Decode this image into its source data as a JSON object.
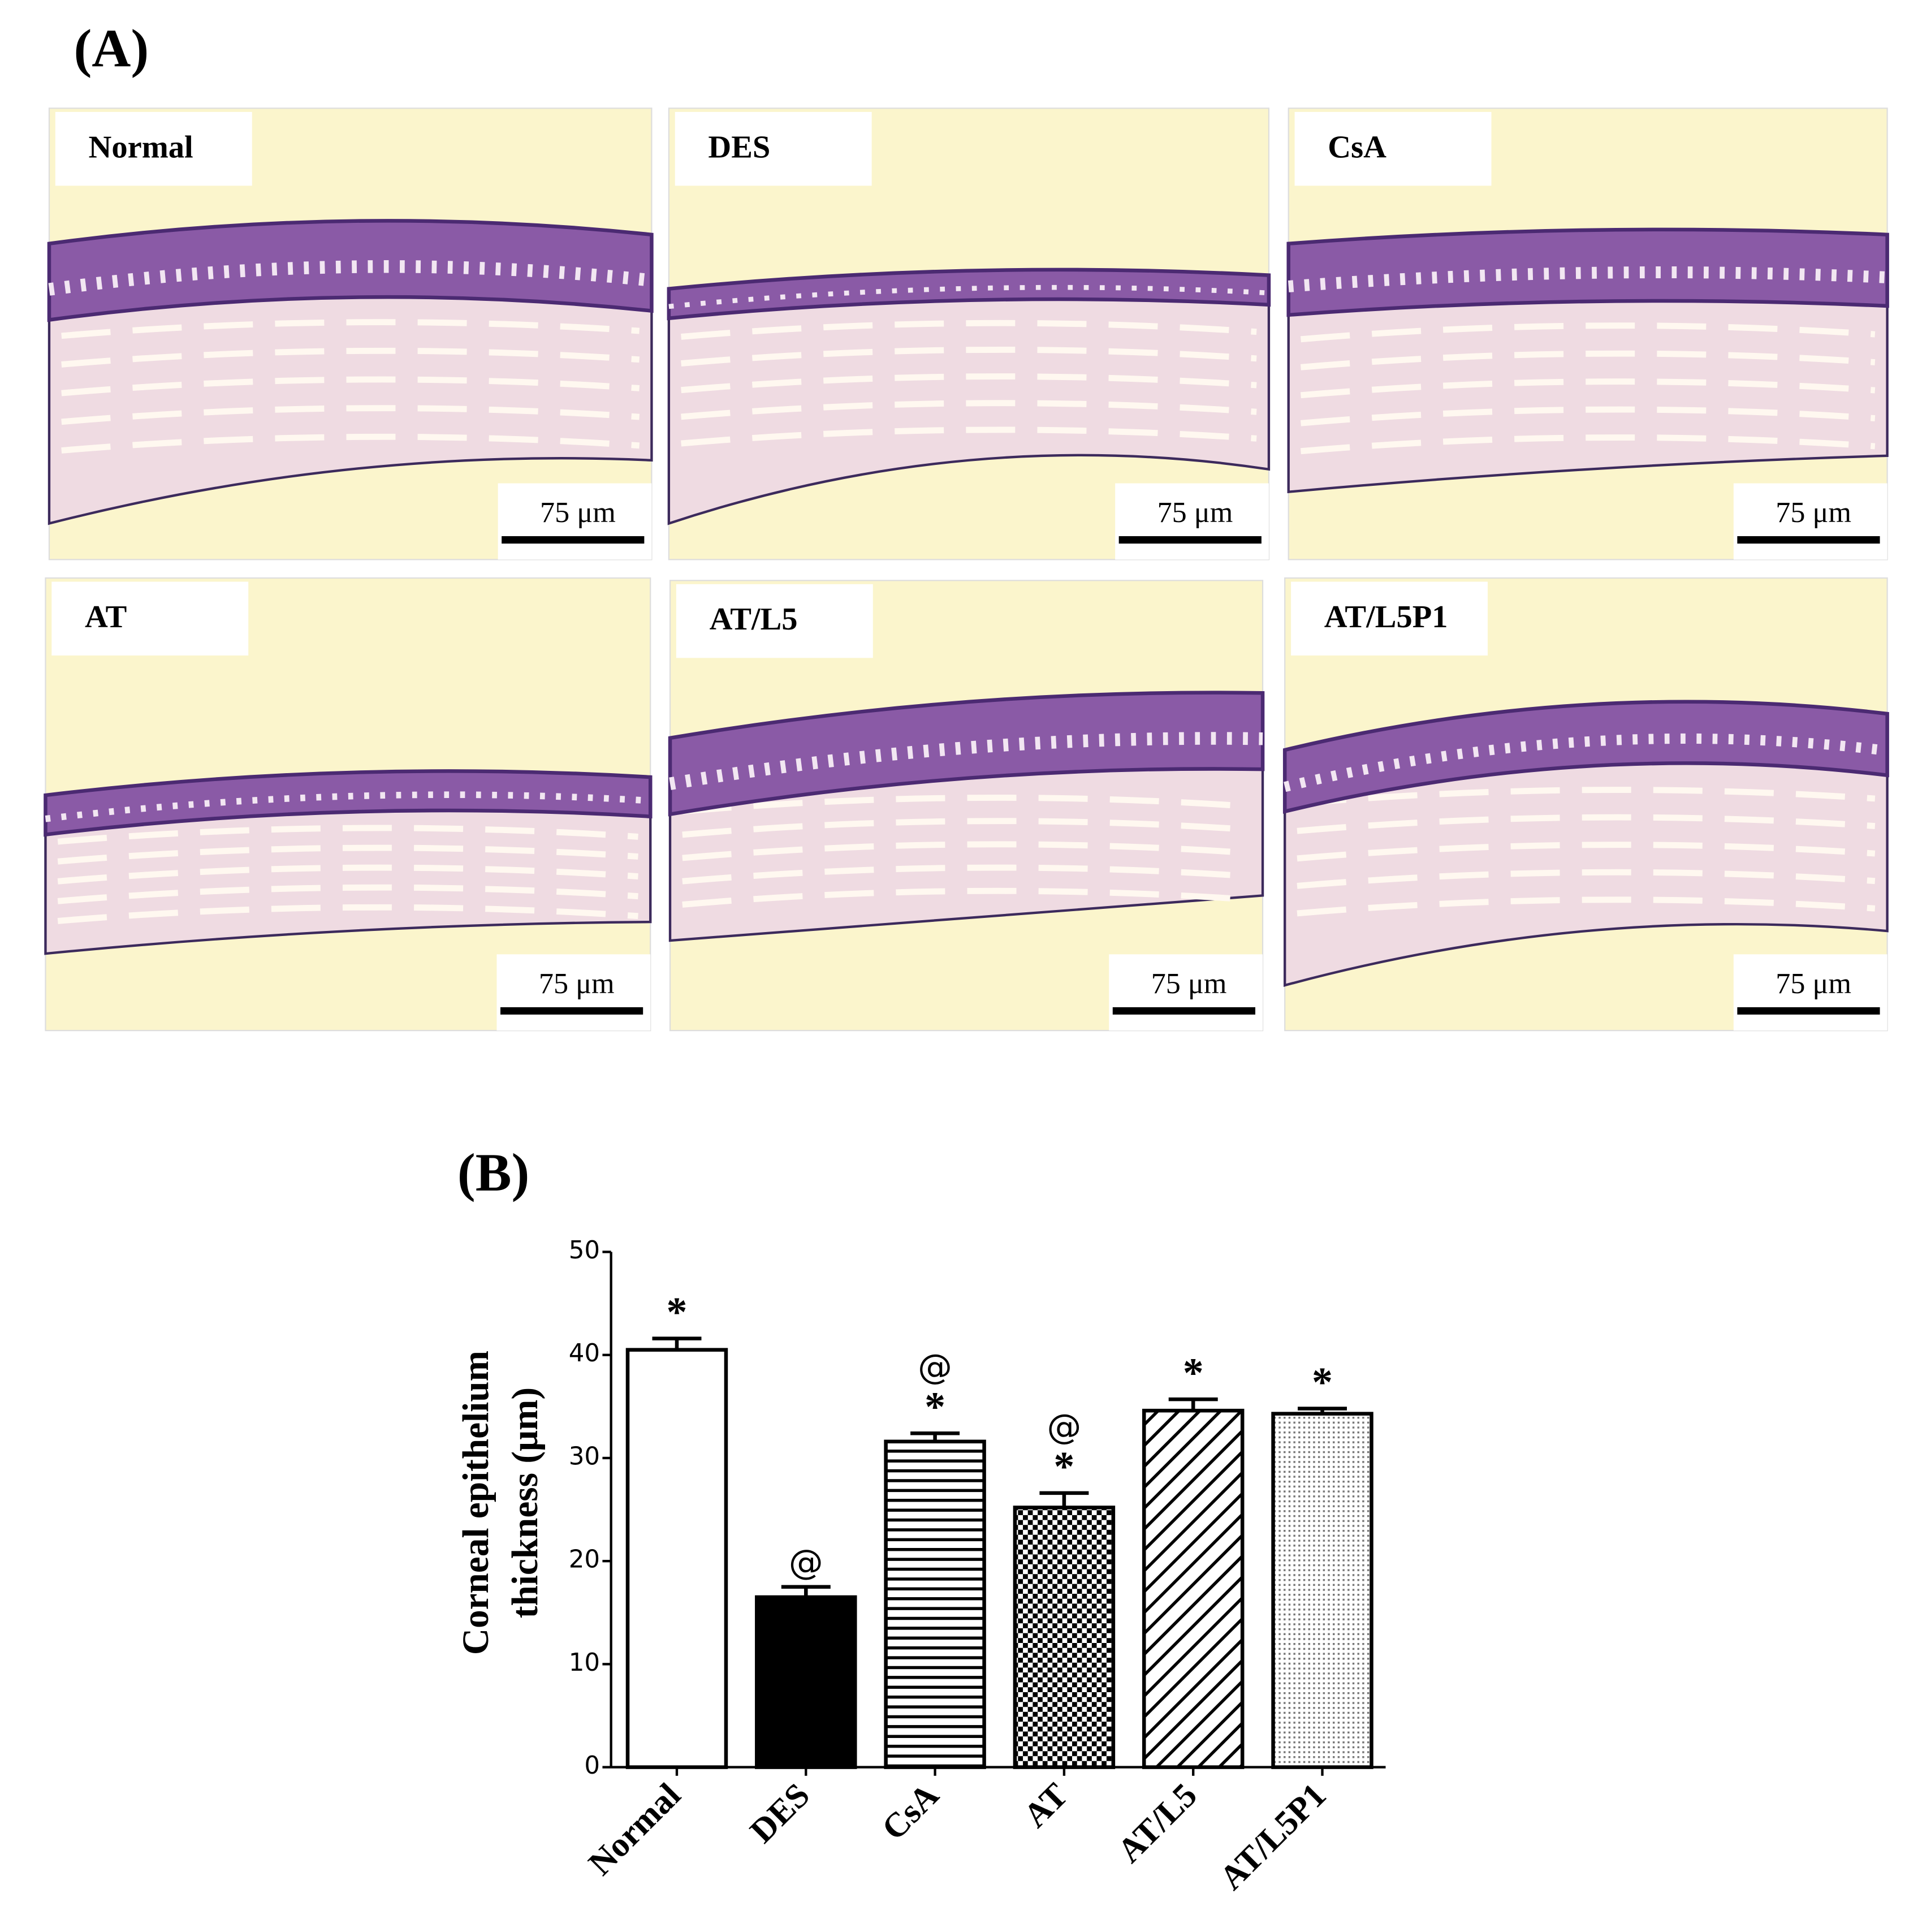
{
  "panel_a_label": "(A)",
  "panels": [
    {
      "label": "Normal",
      "scale": "75 μm"
    },
    {
      "label": "DES",
      "scale": "75 μm"
    },
    {
      "label": "CsA",
      "scale": "75 μm"
    },
    {
      "label": "AT",
      "scale": "75 μm"
    },
    {
      "label": "AT/L5",
      "scale": "75 μm"
    },
    {
      "label": "AT/L5P1",
      "scale": "75 μm"
    }
  ],
  "chart_data": {
    "type": "bar",
    "panel_label": "(B)",
    "ylabel": [
      "Corneal epithelium",
      "thickness (μm)"
    ],
    "categories": [
      "Normal",
      "DES",
      "CsA",
      "AT",
      "AT/L5",
      "AT/L5P1"
    ],
    "values": [
      40.5,
      16.5,
      31.6,
      25.2,
      34.6,
      34.3
    ],
    "errors": [
      1.1,
      1.0,
      0.8,
      1.4,
      1.1,
      0.5
    ],
    "annotations": [
      [
        "*"
      ],
      [
        "@"
      ],
      [
        "@",
        "*"
      ],
      [
        "@",
        "*"
      ],
      [
        "*"
      ],
      [
        "*"
      ]
    ],
    "patterns": [
      "none",
      "solid",
      "horizontal",
      "checker",
      "diagonal",
      "dots"
    ],
    "color": "#000000",
    "ylim": [
      0,
      50
    ],
    "yticks": [
      0,
      10,
      20,
      30,
      40,
      50
    ]
  }
}
